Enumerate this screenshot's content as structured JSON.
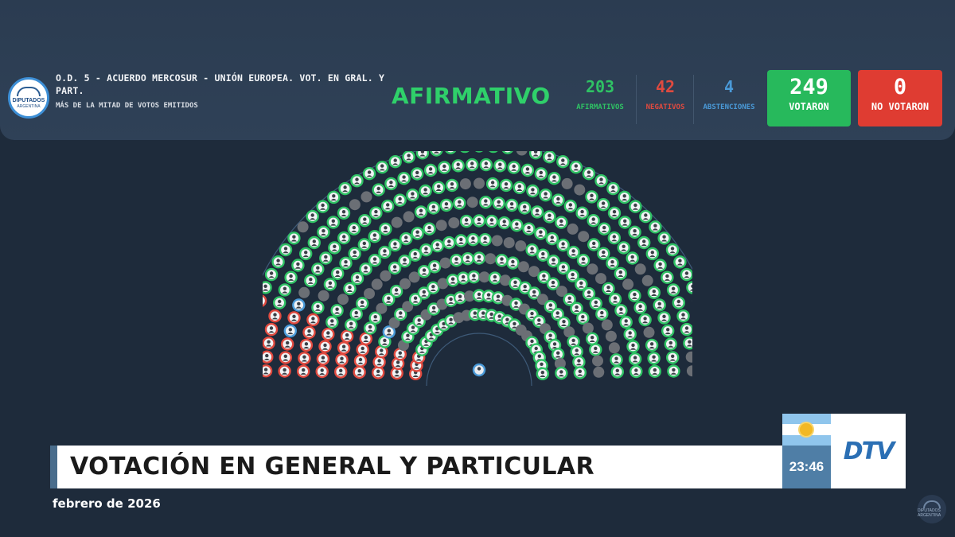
{
  "vote_banner": {
    "institution_logo": {
      "line1": "DIPUTADOS",
      "line2": "ARGENTINA",
      "icon": "congress-dome-icon"
    },
    "title": "O.D. 5 - ACUERDO MERCOSUR - UNIÓN EUROPEA. VOT. EN GRAL. Y PART.",
    "majority_rule": "MÁS DE LA MITAD DE VOTOS EMITIDOS",
    "result": "AFIRMATIVO",
    "counts": {
      "afirmativos": {
        "value": "203",
        "label": "AFIRMATIVOS",
        "color": "#2fc264"
      },
      "negativos": {
        "value": "42",
        "label": "NEGATIVOS",
        "color": "#e04a3f"
      },
      "abstenciones": {
        "value": "4",
        "label": "ABSTENCIONES",
        "color": "#4a9ad8"
      }
    },
    "votaron": {
      "value": "249",
      "label": "VOTARON",
      "color": "#27b95c"
    },
    "no_votaron": {
      "value": "0",
      "label": "NO VOTARON",
      "color": "#df3c32"
    }
  },
  "hemicycle": {
    "rows": 10,
    "seats_per_row": [
      24,
      27,
      30,
      33,
      36,
      39,
      42,
      45,
      48,
      51
    ],
    "seat_colors": {
      "afirmativo": "#2fc264",
      "negativo": "#e04a3f",
      "abstencion": "#4a9ad8",
      "vacant": "#6b6f75"
    },
    "president_seat_color": "#4a9ad8"
  },
  "lower_third": {
    "headline": "VOTACIÓN EN GENERAL Y PARTICULAR",
    "time": "23:46",
    "channel_logo": "DTV",
    "date_ticker": "febrero de 2026",
    "flag_icon": "argentina-flag-icon",
    "watermark": "DIPUTADOS ARGENTINA"
  }
}
